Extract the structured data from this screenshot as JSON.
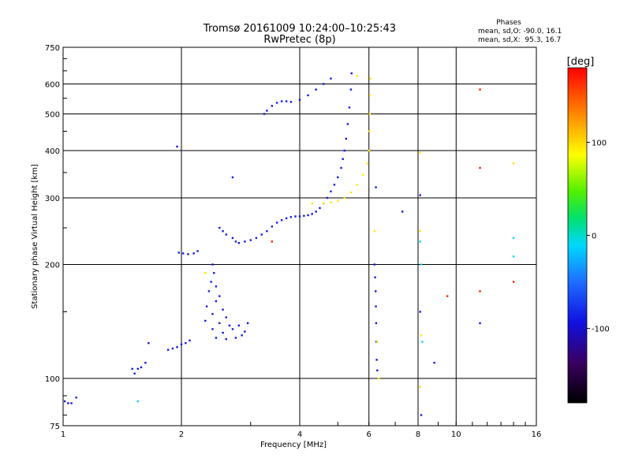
{
  "chart_data": {
    "type": "scatter",
    "title": "Tromsø 20161009 10:24:00–10:25:43",
    "subtitle": "RwPretec (8p)",
    "xlabel": "Frequency [MHz]",
    "ylabel": "Stationary phase Virtual Height [km]",
    "x_scale": "log",
    "y_scale": "log",
    "xlim": [
      1,
      16
    ],
    "ylim": [
      75,
      750
    ],
    "x_ticks": [
      1,
      2,
      4,
      6,
      8,
      10,
      16
    ],
    "y_ticks": [
      75,
      100,
      200,
      300,
      400,
      500,
      600,
      750
    ],
    "grid": true,
    "phases_header": "Phases",
    "phases_o": "mean, sd,O: -90.0, 16.1",
    "phases_x": "mean, sd,X:  95.3, 16.7",
    "colorbar": {
      "label": "[deg]",
      "ticks": [
        100,
        0,
        -100
      ],
      "range": [
        -180,
        180
      ]
    },
    "series": [
      {
        "mode": "O",
        "phase": -90,
        "points": [
          [
            1.01,
            87
          ],
          [
            1.03,
            86
          ],
          [
            1.05,
            86
          ],
          [
            1.08,
            89
          ],
          [
            1.5,
            106
          ],
          [
            1.52,
            103
          ],
          [
            1.55,
            106
          ],
          [
            1.58,
            107
          ],
          [
            1.62,
            110
          ],
          [
            1.65,
            124
          ],
          [
            1.85,
            119
          ],
          [
            1.9,
            120
          ],
          [
            1.95,
            121
          ],
          [
            2.0,
            123
          ],
          [
            2.05,
            124
          ],
          [
            2.1,
            126
          ],
          [
            1.97,
            215
          ],
          [
            2.02,
            214
          ],
          [
            2.08,
            213
          ],
          [
            2.15,
            214
          ],
          [
            2.2,
            217
          ],
          [
            2.4,
            200
          ],
          [
            2.42,
            190
          ],
          [
            2.38,
            180
          ],
          [
            2.45,
            175
          ],
          [
            2.35,
            170
          ],
          [
            2.5,
            165
          ],
          [
            2.45,
            160
          ],
          [
            2.32,
            155
          ],
          [
            2.55,
            152
          ],
          [
            2.4,
            148
          ],
          [
            2.6,
            145
          ],
          [
            2.3,
            142
          ],
          [
            2.5,
            140
          ],
          [
            2.65,
            138
          ],
          [
            2.4,
            135
          ],
          [
            2.55,
            132
          ],
          [
            2.7,
            135
          ],
          [
            2.8,
            138
          ],
          [
            2.85,
            130
          ],
          [
            2.75,
            128
          ],
          [
            2.45,
            128
          ],
          [
            2.6,
            127
          ],
          [
            2.9,
            133
          ],
          [
            2.95,
            140
          ],
          [
            2.5,
            250
          ],
          [
            2.55,
            245
          ],
          [
            2.6,
            240
          ],
          [
            2.7,
            235
          ],
          [
            2.75,
            230
          ],
          [
            2.8,
            228
          ],
          [
            2.9,
            230
          ],
          [
            3.0,
            232
          ],
          [
            3.1,
            235
          ],
          [
            3.2,
            240
          ],
          [
            3.3,
            245
          ],
          [
            3.4,
            252
          ],
          [
            3.5,
            258
          ],
          [
            3.6,
            262
          ],
          [
            3.7,
            265
          ],
          [
            3.8,
            267
          ],
          [
            3.9,
            268
          ],
          [
            4.0,
            268
          ],
          [
            4.1,
            269
          ],
          [
            4.2,
            270
          ],
          [
            4.3,
            272
          ],
          [
            4.4,
            276
          ],
          [
            4.5,
            282
          ],
          [
            4.6,
            290
          ],
          [
            4.7,
            300
          ],
          [
            4.8,
            312
          ],
          [
            4.9,
            325
          ],
          [
            5.0,
            340
          ],
          [
            5.1,
            360
          ],
          [
            5.15,
            380
          ],
          [
            5.2,
            400
          ],
          [
            5.25,
            430
          ],
          [
            5.3,
            470
          ],
          [
            5.35,
            520
          ],
          [
            5.4,
            580
          ],
          [
            5.42,
            640
          ],
          [
            3.25,
            500
          ],
          [
            3.3,
            510
          ],
          [
            3.4,
            525
          ],
          [
            3.5,
            535
          ],
          [
            3.6,
            540
          ],
          [
            3.7,
            540
          ],
          [
            3.8,
            538
          ],
          [
            4.0,
            545
          ],
          [
            4.2,
            560
          ],
          [
            4.4,
            580
          ],
          [
            4.6,
            600
          ],
          [
            4.8,
            620
          ],
          [
            2.7,
            340
          ],
          [
            1.95,
            410
          ],
          [
            7.3,
            276
          ],
          [
            6.25,
            320
          ],
          [
            8.1,
            305
          ],
          [
            6.2,
            200
          ],
          [
            6.22,
            185
          ],
          [
            6.24,
            170
          ],
          [
            6.25,
            155
          ],
          [
            6.26,
            140
          ],
          [
            6.27,
            125
          ],
          [
            6.28,
            112
          ],
          [
            6.3,
            105
          ],
          [
            8.1,
            150
          ],
          [
            8.15,
            80
          ],
          [
            11.5,
            140
          ],
          [
            8.8,
            110
          ]
        ]
      },
      {
        "mode": "X",
        "phase": 95,
        "points": [
          [
            4.6,
            290
          ],
          [
            4.8,
            292
          ],
          [
            5.0,
            295
          ],
          [
            5.2,
            300
          ],
          [
            5.4,
            310
          ],
          [
            5.6,
            325
          ],
          [
            5.8,
            345
          ],
          [
            5.95,
            370
          ],
          [
            6.0,
            400
          ],
          [
            6.02,
            450
          ],
          [
            6.03,
            500
          ],
          [
            6.04,
            560
          ],
          [
            6.05,
            620
          ],
          [
            5.6,
            630
          ],
          [
            4.3,
            290
          ],
          [
            6.2,
            245
          ],
          [
            8.1,
            395
          ],
          [
            6.3,
            125
          ],
          [
            6.35,
            100
          ],
          [
            8.1,
            245
          ],
          [
            8.15,
            130
          ],
          [
            8.1,
            95
          ],
          [
            14.0,
            370
          ],
          [
            2.3,
            190
          ]
        ]
      },
      {
        "mode": "noise",
        "phase": 170,
        "points": [
          [
            3.4,
            230
          ],
          [
            9.5,
            165
          ],
          [
            11.5,
            580
          ],
          [
            11.5,
            360
          ],
          [
            14.0,
            180
          ],
          [
            11.5,
            170
          ]
        ]
      },
      {
        "mode": "noise",
        "phase": -10,
        "points": [
          [
            14.0,
            235
          ],
          [
            14.0,
            210
          ],
          [
            8.1,
            230
          ],
          [
            8.15,
            200
          ],
          [
            8.2,
            125
          ],
          [
            1.55,
            87
          ]
        ]
      }
    ]
  }
}
